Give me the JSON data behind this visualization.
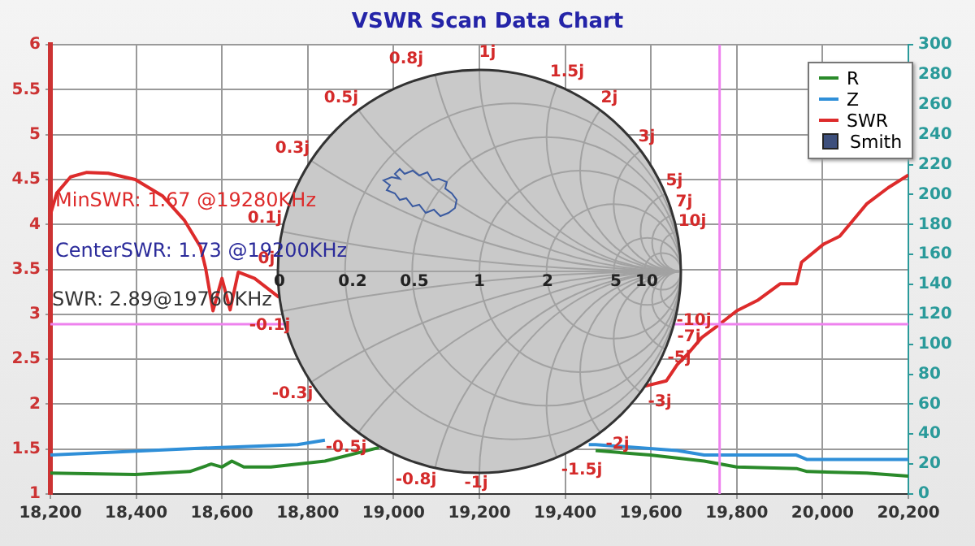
{
  "chart_data": {
    "type": "line",
    "title": "VSWR Scan Data Chart",
    "xlim": [
      18200,
      20200
    ],
    "xticks": [
      {
        "value": 18200,
        "label": "18,200"
      },
      {
        "value": 18400,
        "label": "18,400"
      },
      {
        "value": 18600,
        "label": "18,600"
      },
      {
        "value": 18800,
        "label": "18,800"
      },
      {
        "value": 19000,
        "label": "19,000"
      },
      {
        "value": 19200,
        "label": "19,200"
      },
      {
        "value": 19400,
        "label": "19,400"
      },
      {
        "value": 19600,
        "label": "19,600"
      },
      {
        "value": 19800,
        "label": "19,800"
      },
      {
        "value": 20000,
        "label": "20,000"
      },
      {
        "value": 20200,
        "label": "20,200"
      }
    ],
    "ylim": [
      1,
      6
    ],
    "yticks": [
      1,
      1.5,
      2,
      2.5,
      3,
      3.5,
      4,
      4.5,
      5,
      5.5,
      6
    ],
    "y2lim": [
      0,
      300
    ],
    "y2ticks": [
      0,
      20,
      40,
      60,
      80,
      100,
      120,
      140,
      160,
      180,
      200,
      220,
      240,
      260,
      280,
      300
    ],
    "grid": true,
    "legend": "top right",
    "marker": "none",
    "series": [
      {
        "name": "R",
        "color": "#2a8a2a",
        "axis": "y2",
        "x": [
          18200,
          18398,
          18525,
          18575,
          18600,
          18623,
          18651,
          18714,
          18840,
          18966,
          19200,
          19471,
          19598,
          19724,
          19800,
          19939,
          19964,
          20103,
          20200
        ],
        "values": [
          14,
          13,
          15,
          20,
          18,
          22,
          18,
          18,
          22,
          31,
          null,
          29,
          26,
          22,
          18,
          17,
          15,
          14,
          12
        ]
      },
      {
        "name": "Z",
        "color": "#2f8fd8",
        "axis": "y2",
        "x": [
          18200,
          18586,
          18776,
          18840,
          19100,
          19455,
          19471,
          19661,
          19724,
          19939,
          19964,
          20200
        ],
        "values": [
          26,
          31,
          33,
          36,
          null,
          33,
          33,
          29,
          26,
          26,
          23,
          23
        ]
      },
      {
        "name": "SWR",
        "color": "#dd2b2b",
        "x": [
          18200,
          18215,
          18247,
          18285,
          18335,
          18398,
          18461,
          18512,
          18550,
          18562,
          18579,
          18600,
          18619,
          18638,
          18676,
          18733,
          19200,
          19585,
          19636,
          19661,
          19686,
          19718,
          19760,
          19800,
          19850,
          19901,
          19939,
          19951,
          20002,
          20040,
          20103,
          20153,
          20200
        ],
        "values": [
          4.11,
          4.35,
          4.53,
          4.58,
          4.57,
          4.5,
          4.32,
          4.05,
          3.75,
          3.51,
          3.04,
          3.4,
          3.05,
          3.47,
          3.4,
          3.19,
          null,
          2.2,
          2.26,
          2.44,
          2.56,
          2.74,
          2.89,
          3.04,
          3.16,
          3.34,
          3.34,
          3.58,
          3.78,
          3.87,
          4.23,
          4.41,
          4.55
        ]
      },
      {
        "name": "Smith",
        "color": "#3d4f7c",
        "type": "scatter",
        "marker": "square"
      }
    ],
    "ref_lines": [
      {
        "axis": "x",
        "value": 19760,
        "color": "#ee82ee"
      },
      {
        "axis": "y",
        "value": 2.89,
        "color": "#ee82ee"
      }
    ],
    "annotations": [
      "MinSWR: 1.67 @19280KHz",
      "CenterSWR: 1.73 @19200KHz",
      "SWR: 2.89@19760KHz",
      "0.8j",
      "1j",
      "1.5j",
      "2j",
      "3j",
      "5j",
      "7j",
      "10j",
      "-10j",
      "-7j",
      "-5j",
      "-3j",
      "-2j",
      "-1.5j",
      "-1j",
      "-0.8j",
      "-0.5j",
      "-0.3j",
      "-0.1j",
      "0j",
      "0.1j",
      "0.3j",
      "0.5j",
      "0",
      "0.2",
      "0.5",
      "1",
      "2",
      "5",
      "10"
    ]
  }
}
